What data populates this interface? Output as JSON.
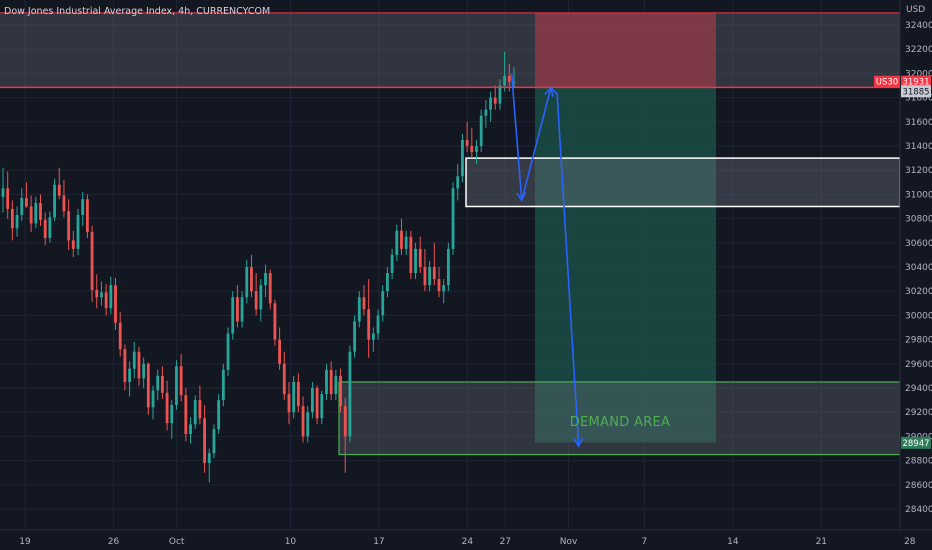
{
  "chart_data": {
    "type": "candlestick",
    "title": "Dow Jones Industrial Average Index, 4h, CURRENCYCOM",
    "currency_label": "USD",
    "symbol_badge": "US30",
    "ylim": [
      28300,
      32550
    ],
    "y_ticks": [
      "32400",
      "32200",
      "32000",
      "31800",
      "31600",
      "31400",
      "31200",
      "31000",
      "30800",
      "30600",
      "30400",
      "30200",
      "30000",
      "29800",
      "29600",
      "29400",
      "29200",
      "29000",
      "28800",
      "28600",
      "28400"
    ],
    "x_ticks": [
      "19",
      "26",
      "Oct",
      "10",
      "17",
      "24",
      "27",
      "Nov",
      "7",
      "14",
      "21",
      "28"
    ],
    "x_tick_days": [
      0,
      7,
      12,
      21,
      28,
      35,
      38,
      43,
      49,
      56,
      63,
      70
    ],
    "price_labels": {
      "last_price": "31931",
      "entry": "31885",
      "target": "28947"
    },
    "colors": {
      "up": "#26a69a",
      "down": "#ef5350",
      "background": "#131722",
      "grid": "#1f2433",
      "projection": "#2962ff",
      "stop_zone": "#8b3a48",
      "profit_zone": "#1b4a45",
      "demand_border": "#4caf50",
      "supply_border": "#ffffff",
      "resistance_line": "#f23645"
    },
    "levels": {
      "top_line": 32500,
      "resistance_line": 31885,
      "supply_zone": [
        30900,
        31300
      ],
      "demand_zone": [
        28850,
        29450
      ],
      "position_stop": [
        31885,
        32500
      ],
      "position_target": [
        28950,
        31885
      ]
    },
    "annotations": {
      "demand_label": "DEMAND AREA"
    },
    "projection_path": [
      [
        38.5,
        32000
      ],
      [
        39.3,
        30950
      ],
      [
        41.6,
        31880
      ],
      [
        42.1,
        31830
      ],
      [
        43.8,
        28920
      ]
    ],
    "ohlc": [
      [
        30980,
        31220,
        30850,
        31050
      ],
      [
        31050,
        31190,
        30800,
        30880
      ],
      [
        30880,
        30950,
        30620,
        30720
      ],
      [
        30720,
        30900,
        30650,
        30830
      ],
      [
        30830,
        31050,
        30780,
        30970
      ],
      [
        30970,
        31100,
        30890,
        30900
      ],
      [
        30900,
        30990,
        30690,
        30760
      ],
      [
        30760,
        30980,
        30720,
        30930
      ],
      [
        30930,
        31000,
        30740,
        30790
      ],
      [
        30790,
        30850,
        30580,
        30640
      ],
      [
        30640,
        30860,
        30600,
        30810
      ],
      [
        30810,
        31130,
        30780,
        31080
      ],
      [
        31080,
        31220,
        30960,
        30990
      ],
      [
        30990,
        31120,
        30810,
        30860
      ],
      [
        30860,
        30960,
        30540,
        30620
      ],
      [
        30620,
        30700,
        30480,
        30550
      ],
      [
        30550,
        30880,
        30500,
        30830
      ],
      [
        30830,
        31020,
        30740,
        30960
      ],
      [
        30960,
        31000,
        30640,
        30690
      ],
      [
        30690,
        30740,
        30110,
        30210
      ],
      [
        30210,
        30340,
        30060,
        30150
      ],
      [
        30150,
        30280,
        30080,
        30190
      ],
      [
        30190,
        30260,
        30000,
        30060
      ],
      [
        30060,
        30320,
        30010,
        30250
      ],
      [
        30250,
        30310,
        29880,
        29940
      ],
      [
        29940,
        30030,
        29660,
        29720
      ],
      [
        29720,
        29760,
        29380,
        29450
      ],
      [
        29450,
        29620,
        29330,
        29560
      ],
      [
        29560,
        29780,
        29480,
        29700
      ],
      [
        29700,
        29740,
        29420,
        29480
      ],
      [
        29480,
        29650,
        29400,
        29600
      ],
      [
        29600,
        29610,
        29180,
        29240
      ],
      [
        29240,
        29420,
        29140,
        29380
      ],
      [
        29380,
        29550,
        29300,
        29500
      ],
      [
        29500,
        29580,
        29310,
        29360
      ],
      [
        29360,
        29460,
        29050,
        29110
      ],
      [
        29110,
        29300,
        28980,
        29260
      ],
      [
        29260,
        29630,
        29220,
        29580
      ],
      [
        29580,
        29680,
        29290,
        29340
      ],
      [
        29340,
        29400,
        28960,
        29020
      ],
      [
        29020,
        29160,
        28940,
        29100
      ],
      [
        29100,
        29340,
        29060,
        29300
      ],
      [
        29300,
        29420,
        29100,
        29150
      ],
      [
        29150,
        29260,
        28700,
        28780
      ],
      [
        28780,
        28900,
        28620,
        28860
      ],
      [
        28860,
        29100,
        28820,
        29060
      ],
      [
        29060,
        29350,
        29020,
        29300
      ],
      [
        29300,
        29600,
        29250,
        29550
      ],
      [
        29550,
        29900,
        29500,
        29850
      ],
      [
        29850,
        30200,
        29800,
        30150
      ],
      [
        30150,
        30250,
        29900,
        29950
      ],
      [
        29950,
        30200,
        29900,
        30150
      ],
      [
        30150,
        30460,
        30100,
        30400
      ],
      [
        30400,
        30500,
        30150,
        30200
      ],
      [
        30200,
        30350,
        30000,
        30050
      ],
      [
        30050,
        30300,
        29950,
        30250
      ],
      [
        30250,
        30420,
        30150,
        30350
      ],
      [
        30350,
        30380,
        30050,
        30100
      ],
      [
        30100,
        30130,
        29750,
        29800
      ],
      [
        29800,
        29900,
        29550,
        29600
      ],
      [
        29600,
        29700,
        29300,
        29350
      ],
      [
        29350,
        29450,
        29100,
        29200
      ],
      [
        29200,
        29500,
        29150,
        29450
      ],
      [
        29450,
        29520,
        29200,
        29250
      ],
      [
        29250,
        29330,
        28950,
        29000
      ],
      [
        29000,
        29250,
        28950,
        29200
      ],
      [
        29200,
        29450,
        29150,
        29400
      ],
      [
        29400,
        29420,
        29100,
        29150
      ],
      [
        29150,
        29380,
        29100,
        29350
      ],
      [
        29350,
        29600,
        29300,
        29550
      ],
      [
        29550,
        29620,
        29300,
        29350
      ],
      [
        29350,
        29550,
        29300,
        29500
      ],
      [
        29500,
        29560,
        29200,
        29250
      ],
      [
        29250,
        29320,
        28700,
        29000
      ],
      [
        29000,
        29750,
        28950,
        29700
      ],
      [
        29700,
        30000,
        29650,
        29950
      ],
      [
        29950,
        30200,
        29900,
        30150
      ],
      [
        30150,
        30250,
        30000,
        30050
      ],
      [
        30050,
        30300,
        29650,
        29800
      ],
      [
        29800,
        29900,
        29700,
        29850
      ],
      [
        29850,
        30050,
        29800,
        30000
      ],
      [
        30000,
        30250,
        29950,
        30200
      ],
      [
        30200,
        30400,
        30150,
        30350
      ],
      [
        30350,
        30550,
        30300,
        30500
      ],
      [
        30500,
        30750,
        30450,
        30700
      ],
      [
        30700,
        30800,
        30500,
        30550
      ],
      [
        30550,
        30700,
        30500,
        30650
      ],
      [
        30650,
        30700,
        30300,
        30350
      ],
      [
        30350,
        30600,
        30300,
        30550
      ],
      [
        30550,
        30650,
        30350,
        30400
      ],
      [
        30400,
        30550,
        30200,
        30250
      ],
      [
        30250,
        30450,
        30200,
        30400
      ],
      [
        30400,
        30600,
        30250,
        30300
      ],
      [
        30300,
        30400,
        30150,
        30200
      ],
      [
        30200,
        30300,
        30100,
        30250
      ],
      [
        30250,
        30600,
        30200,
        30550
      ],
      [
        30550,
        31100,
        30500,
        31050
      ],
      [
        31050,
        31250,
        30950,
        31150
      ],
      [
        31150,
        31500,
        31100,
        31450
      ],
      [
        31450,
        31600,
        31350,
        31400
      ],
      [
        31400,
        31550,
        31300,
        31350
      ],
      [
        31350,
        31450,
        31250,
        31400
      ],
      [
        31400,
        31700,
        31350,
        31650
      ],
      [
        31650,
        31780,
        31550,
        31700
      ],
      [
        31700,
        31850,
        31600,
        31800
      ],
      [
        31800,
        31900,
        31700,
        31750
      ],
      [
        31750,
        31950,
        31700,
        31900
      ],
      [
        31900,
        32180,
        31850,
        31980
      ],
      [
        31980,
        32080,
        31850,
        31930
      ],
      [
        31930,
        32050,
        31880,
        31931
      ]
    ]
  }
}
